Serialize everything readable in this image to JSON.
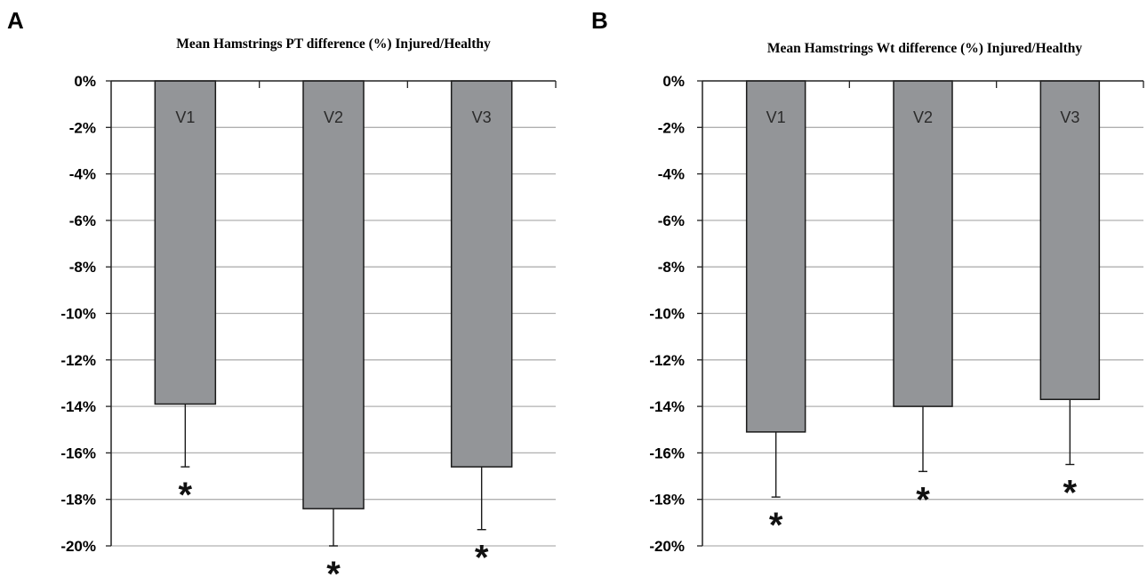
{
  "chart_data": [
    {
      "type": "bar",
      "panel": "A",
      "title": "Mean Hamstrings PT difference (%) Injured/Healthy",
      "categories": [
        "V1",
        "V2",
        "V3"
      ],
      "values": [
        -13.9,
        -18.4,
        -16.6
      ],
      "error_low": [
        -16.6,
        -20.0,
        -19.3
      ],
      "significance": [
        "*",
        "*",
        "*"
      ],
      "ylim": [
        -20,
        0
      ],
      "yticks": [
        "0%",
        "-2%",
        "-4%",
        "-6%",
        "-8%",
        "-10%",
        "-12%",
        "-14%",
        "-16%",
        "-18%",
        "-20%"
      ],
      "grid": true,
      "xlabel": "",
      "ylabel": "",
      "bar_color": "#939598"
    },
    {
      "type": "bar",
      "panel": "B",
      "title": "Mean Hamstrings Wt difference (%) Injured/Healthy",
      "categories": [
        "V1",
        "V2",
        "V3"
      ],
      "values": [
        -15.1,
        -14.0,
        -13.7
      ],
      "error_low": [
        -17.9,
        -16.8,
        -16.5
      ],
      "significance": [
        "*",
        "*",
        "*"
      ],
      "ylim": [
        -20,
        0
      ],
      "yticks": [
        "0%",
        "-2%",
        "-4%",
        "-6%",
        "-8%",
        "-10%",
        "-12%",
        "-14%",
        "-16%",
        "-18%",
        "-20%"
      ],
      "grid": true,
      "xlabel": "",
      "ylabel": "",
      "bar_color": "#939598"
    }
  ]
}
